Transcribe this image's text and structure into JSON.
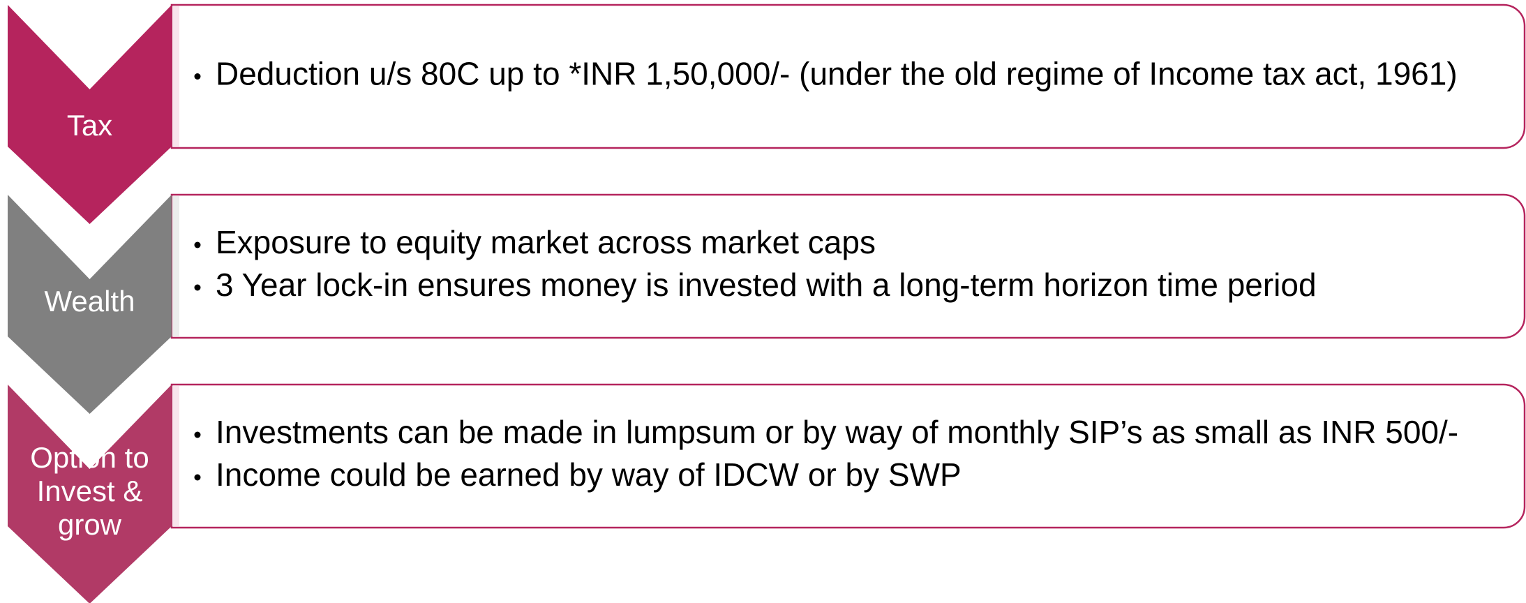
{
  "items": [
    {
      "label": [
        "Tax"
      ],
      "bullets": [
        "Deduction u/s 80C up to *INR 1,50,000/- (under the old regime of Income tax act, 1961)"
      ]
    },
    {
      "label": [
        "Wealth"
      ],
      "bullets": [
        "Exposure to equity market across market caps",
        "3 Year lock-in ensures money is invested with a long-term horizon time period"
      ]
    },
    {
      "label": [
        "Option to",
        "Invest &",
        "grow"
      ],
      "bullets": [
        "Investments can be made in lumpsum or by way of monthly SIP’s as small as INR 500/-",
        "Income could be earned by way of IDCW or by SWP"
      ]
    }
  ]
}
